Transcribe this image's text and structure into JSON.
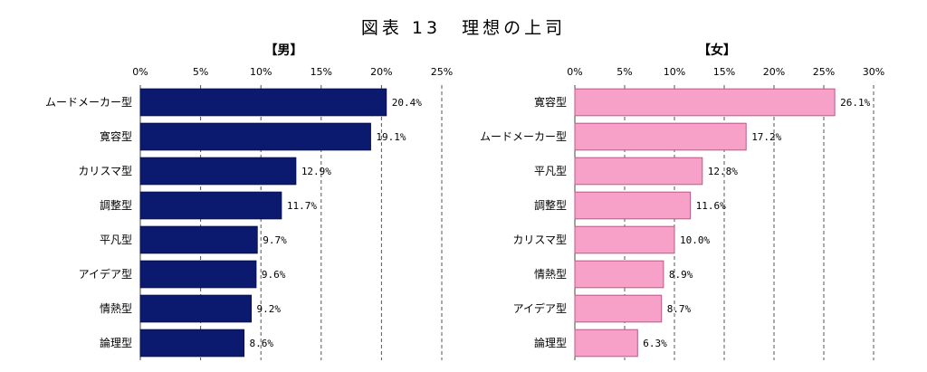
{
  "figure_title": "図表 13　理想の上司",
  "chart_data": [
    {
      "type": "bar",
      "orientation": "horizontal",
      "title": "【男】",
      "categories": [
        "ムードメーカー型",
        "寛容型",
        "カリスマ型",
        "調整型",
        "平凡型",
        "アイデア型",
        "情熱型",
        "論理型"
      ],
      "values": [
        20.4,
        19.1,
        12.9,
        11.7,
        9.7,
        9.6,
        9.2,
        8.6
      ],
      "value_labels": [
        "20.4%",
        "19.1%",
        "12.9%",
        "11.7%",
        "9.7%",
        "9.6%",
        "9.2%",
        "8.6%"
      ],
      "xlim": [
        0,
        25
      ],
      "ticks": [
        0,
        5,
        10,
        15,
        20,
        25
      ],
      "tick_labels": [
        "0%",
        "5%",
        "10%",
        "15%",
        "20%",
        "25%"
      ],
      "axis_position": "top",
      "grid": "dashed vertical",
      "bar_color": "#0b1a6e"
    },
    {
      "type": "bar",
      "orientation": "horizontal",
      "title": "【女】",
      "categories": [
        "寛容型",
        "ムードメーカー型",
        "平凡型",
        "調整型",
        "カリスマ型",
        "情熱型",
        "アイデア型",
        "論理型"
      ],
      "values": [
        26.1,
        17.2,
        12.8,
        11.6,
        10.0,
        8.9,
        8.7,
        6.3
      ],
      "value_labels": [
        "26.1%",
        "17.2%",
        "12.8%",
        "11.6%",
        "10.0%",
        "8.9%",
        "8.7%",
        "6.3%"
      ],
      "xlim": [
        0,
        30
      ],
      "ticks": [
        0,
        5,
        10,
        15,
        20,
        25,
        30
      ],
      "tick_labels": [
        "0%",
        "5%",
        "10%",
        "15%",
        "20%",
        "25%",
        "30%"
      ],
      "axis_position": "top",
      "grid": "dashed vertical",
      "bar_color": "#f7a1c8"
    }
  ]
}
